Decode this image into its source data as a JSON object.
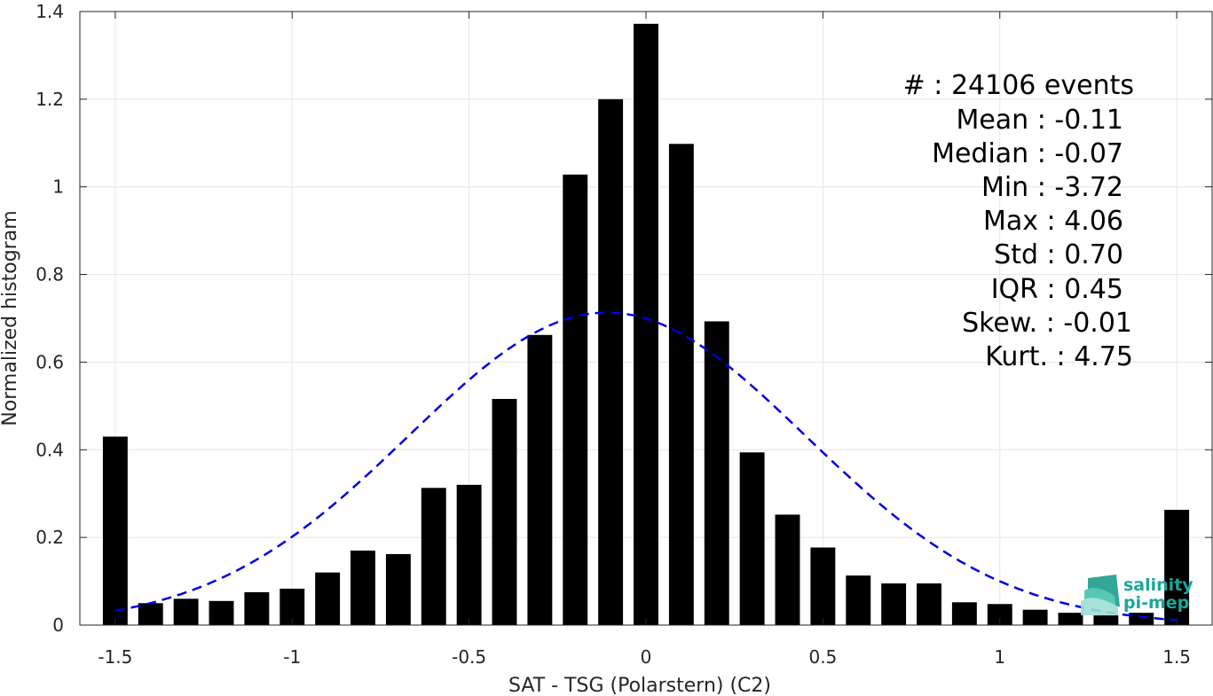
{
  "chart_data": {
    "type": "bar",
    "xlabel": "SAT - TSG (Polarstern) (C2)",
    "ylabel": "Normalized histogram",
    "xlim": [
      -1.6,
      1.6
    ],
    "ylim": [
      0,
      1.4
    ],
    "xticks": [
      -1.5,
      -1,
      -0.5,
      0,
      0.5,
      1,
      1.5
    ],
    "xtick_labels": [
      "-1.5",
      "-1",
      "-0.5",
      "0",
      "0.5",
      "1",
      "1.5"
    ],
    "yticks": [
      0,
      0.2,
      0.4,
      0.6,
      0.8,
      1,
      1.2,
      1.4
    ],
    "ytick_labels": [
      "0",
      "0.2",
      "0.4",
      "0.6",
      "0.8",
      "1",
      "1.2",
      "1.4"
    ],
    "grid": true,
    "bar_color": "#000000",
    "bar_width": 0.07,
    "x": [
      -1.5,
      -1.4,
      -1.3,
      -1.2,
      -1.1,
      -1.0,
      -0.9,
      -0.8,
      -0.7,
      -0.6,
      -0.5,
      -0.4,
      -0.3,
      -0.2,
      -0.1,
      0.0,
      0.1,
      0.2,
      0.3,
      0.4,
      0.5,
      0.6,
      0.7,
      0.8,
      0.9,
      1.0,
      1.1,
      1.2,
      1.3,
      1.4,
      1.5
    ],
    "values": [
      0.43,
      0.05,
      0.06,
      0.055,
      0.075,
      0.083,
      0.12,
      0.17,
      0.162,
      0.313,
      0.32,
      0.516,
      0.662,
      1.028,
      1.2,
      1.372,
      1.098,
      0.693,
      0.394,
      0.252,
      0.177,
      0.113,
      0.095,
      0.095,
      0.052,
      0.048,
      0.035,
      0.028,
      0.022,
      0.028,
      0.263
    ],
    "fit_curve": {
      "style": "dashed",
      "color": "#0000e0",
      "mean": -0.11,
      "std": 0.56,
      "x_range": [
        -1.5,
        1.5
      ],
      "peak": 0.713
    },
    "annotations": [
      "#  : 24106 events",
      "Mean : -0.11",
      "Median : -0.07",
      "Min : -3.72",
      "Max : 4.06",
      "Std : 0.70",
      "IQR : 0.45",
      "Skew. : -0.01",
      "Kurt. : 4.75"
    ]
  },
  "logo": {
    "line1": "salinity",
    "line2": "pi-mep",
    "color": "#1aa89a"
  }
}
